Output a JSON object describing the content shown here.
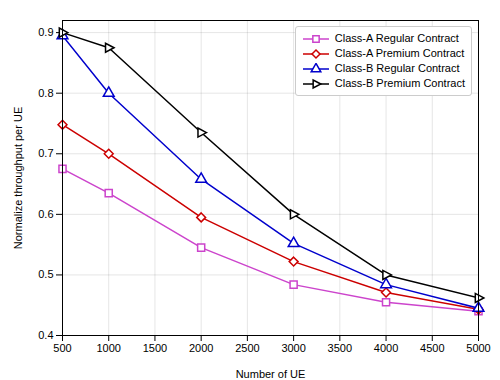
{
  "chart_data": {
    "type": "line",
    "x": [
      500,
      1000,
      2000,
      3000,
      4000,
      5000
    ],
    "series": [
      {
        "name": "Class-A Regular Contract",
        "color": "#CC44CC",
        "marker": "square",
        "values": [
          0.675,
          0.635,
          0.545,
          0.484,
          0.455,
          0.44
        ]
      },
      {
        "name": "Class-A Premium Contract",
        "color": "#CC0000",
        "marker": "diamond",
        "values": [
          0.748,
          0.7,
          0.595,
          0.522,
          0.471,
          0.443
        ]
      },
      {
        "name": "Class-B Regular Contract",
        "color": "#0000CC",
        "marker": "triangle-up",
        "values": [
          0.895,
          0.8,
          0.658,
          0.552,
          0.484,
          0.445
        ]
      },
      {
        "name": "Class-B Premium Contract",
        "color": "#000000",
        "marker": "triangle-right",
        "values": [
          0.9,
          0.875,
          0.735,
          0.6,
          0.5,
          0.462
        ]
      }
    ],
    "xlabel": "Number of UE",
    "ylabel": "Normalize throughput per UE",
    "xlim": [
      500,
      5000
    ],
    "ylim": [
      0.4,
      0.92
    ],
    "xticks": [
      500,
      1000,
      1500,
      2000,
      2500,
      3000,
      3500,
      4000,
      4500,
      5000
    ],
    "yticks": [
      0.4,
      0.5,
      0.6,
      0.7,
      0.8,
      0.9
    ],
    "grid": true,
    "legend": "upper right"
  }
}
